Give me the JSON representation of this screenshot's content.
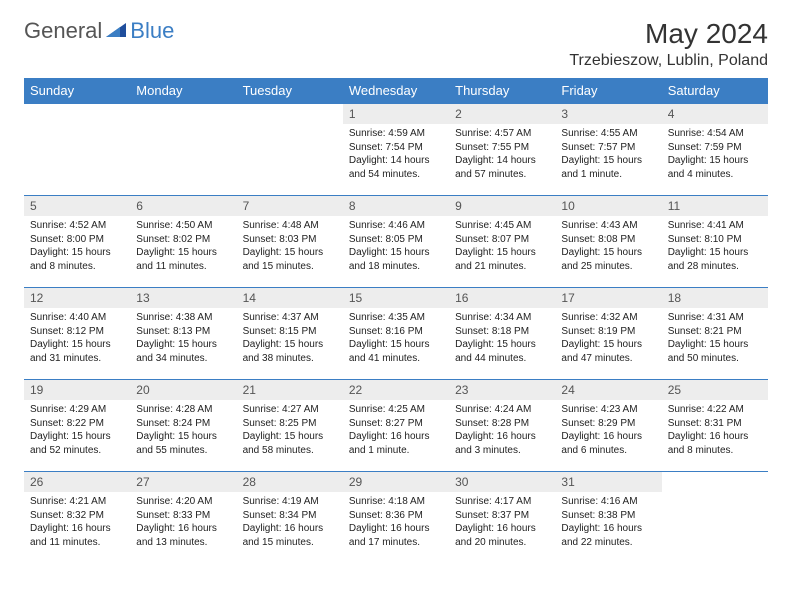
{
  "brand": {
    "general": "General",
    "blue": "Blue"
  },
  "title": "May 2024",
  "location": "Trzebieszow, Lublin, Poland",
  "colors": {
    "header_bg": "#3b7ec4",
    "header_text": "#ffffff",
    "daynum_bg": "#ededed",
    "row_border": "#3b7ec4",
    "body_text": "#222222",
    "page_bg": "#ffffff"
  },
  "weekday_labels": [
    "Sunday",
    "Monday",
    "Tuesday",
    "Wednesday",
    "Thursday",
    "Friday",
    "Saturday"
  ],
  "weeks": [
    [
      null,
      null,
      null,
      {
        "n": "1",
        "sunrise": "4:59 AM",
        "sunset": "7:54 PM",
        "daylight": "14 hours and 54 minutes."
      },
      {
        "n": "2",
        "sunrise": "4:57 AM",
        "sunset": "7:55 PM",
        "daylight": "14 hours and 57 minutes."
      },
      {
        "n": "3",
        "sunrise": "4:55 AM",
        "sunset": "7:57 PM",
        "daylight": "15 hours and 1 minute."
      },
      {
        "n": "4",
        "sunrise": "4:54 AM",
        "sunset": "7:59 PM",
        "daylight": "15 hours and 4 minutes."
      }
    ],
    [
      {
        "n": "5",
        "sunrise": "4:52 AM",
        "sunset": "8:00 PM",
        "daylight": "15 hours and 8 minutes."
      },
      {
        "n": "6",
        "sunrise": "4:50 AM",
        "sunset": "8:02 PM",
        "daylight": "15 hours and 11 minutes."
      },
      {
        "n": "7",
        "sunrise": "4:48 AM",
        "sunset": "8:03 PM",
        "daylight": "15 hours and 15 minutes."
      },
      {
        "n": "8",
        "sunrise": "4:46 AM",
        "sunset": "8:05 PM",
        "daylight": "15 hours and 18 minutes."
      },
      {
        "n": "9",
        "sunrise": "4:45 AM",
        "sunset": "8:07 PM",
        "daylight": "15 hours and 21 minutes."
      },
      {
        "n": "10",
        "sunrise": "4:43 AM",
        "sunset": "8:08 PM",
        "daylight": "15 hours and 25 minutes."
      },
      {
        "n": "11",
        "sunrise": "4:41 AM",
        "sunset": "8:10 PM",
        "daylight": "15 hours and 28 minutes."
      }
    ],
    [
      {
        "n": "12",
        "sunrise": "4:40 AM",
        "sunset": "8:12 PM",
        "daylight": "15 hours and 31 minutes."
      },
      {
        "n": "13",
        "sunrise": "4:38 AM",
        "sunset": "8:13 PM",
        "daylight": "15 hours and 34 minutes."
      },
      {
        "n": "14",
        "sunrise": "4:37 AM",
        "sunset": "8:15 PM",
        "daylight": "15 hours and 38 minutes."
      },
      {
        "n": "15",
        "sunrise": "4:35 AM",
        "sunset": "8:16 PM",
        "daylight": "15 hours and 41 minutes."
      },
      {
        "n": "16",
        "sunrise": "4:34 AM",
        "sunset": "8:18 PM",
        "daylight": "15 hours and 44 minutes."
      },
      {
        "n": "17",
        "sunrise": "4:32 AM",
        "sunset": "8:19 PM",
        "daylight": "15 hours and 47 minutes."
      },
      {
        "n": "18",
        "sunrise": "4:31 AM",
        "sunset": "8:21 PM",
        "daylight": "15 hours and 50 minutes."
      }
    ],
    [
      {
        "n": "19",
        "sunrise": "4:29 AM",
        "sunset": "8:22 PM",
        "daylight": "15 hours and 52 minutes."
      },
      {
        "n": "20",
        "sunrise": "4:28 AM",
        "sunset": "8:24 PM",
        "daylight": "15 hours and 55 minutes."
      },
      {
        "n": "21",
        "sunrise": "4:27 AM",
        "sunset": "8:25 PM",
        "daylight": "15 hours and 58 minutes."
      },
      {
        "n": "22",
        "sunrise": "4:25 AM",
        "sunset": "8:27 PM",
        "daylight": "16 hours and 1 minute."
      },
      {
        "n": "23",
        "sunrise": "4:24 AM",
        "sunset": "8:28 PM",
        "daylight": "16 hours and 3 minutes."
      },
      {
        "n": "24",
        "sunrise": "4:23 AM",
        "sunset": "8:29 PM",
        "daylight": "16 hours and 6 minutes."
      },
      {
        "n": "25",
        "sunrise": "4:22 AM",
        "sunset": "8:31 PM",
        "daylight": "16 hours and 8 minutes."
      }
    ],
    [
      {
        "n": "26",
        "sunrise": "4:21 AM",
        "sunset": "8:32 PM",
        "daylight": "16 hours and 11 minutes."
      },
      {
        "n": "27",
        "sunrise": "4:20 AM",
        "sunset": "8:33 PM",
        "daylight": "16 hours and 13 minutes."
      },
      {
        "n": "28",
        "sunrise": "4:19 AM",
        "sunset": "8:34 PM",
        "daylight": "16 hours and 15 minutes."
      },
      {
        "n": "29",
        "sunrise": "4:18 AM",
        "sunset": "8:36 PM",
        "daylight": "16 hours and 17 minutes."
      },
      {
        "n": "30",
        "sunrise": "4:17 AM",
        "sunset": "8:37 PM",
        "daylight": "16 hours and 20 minutes."
      },
      {
        "n": "31",
        "sunrise": "4:16 AM",
        "sunset": "8:38 PM",
        "daylight": "16 hours and 22 minutes."
      },
      null
    ]
  ],
  "labels": {
    "sunrise": "Sunrise: ",
    "sunset": "Sunset: ",
    "daylight": "Daylight: "
  }
}
